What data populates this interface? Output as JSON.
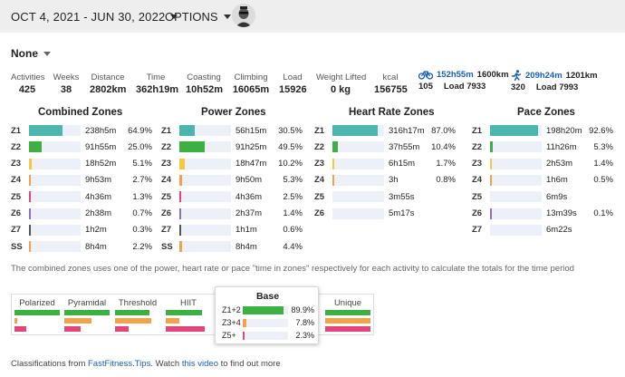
{
  "header": {
    "date_range": "OCT 4, 2021 - JUN 30, 2022",
    "options_label": "OPTIONS"
  },
  "filter": {
    "selected": "None"
  },
  "stats": [
    {
      "label": "Activities",
      "value": "425"
    },
    {
      "label": "Weeks",
      "value": "38"
    },
    {
      "label": "Distance",
      "value": "2802km"
    },
    {
      "label": "Time",
      "value": "362h19m"
    },
    {
      "label": "Coasting",
      "value": "10h52m"
    },
    {
      "label": "Climbing",
      "value": "16065m"
    },
    {
      "label": "Load",
      "value": "15926"
    },
    {
      "label": "Weight Lifted",
      "value": "0 kg"
    },
    {
      "label": "kcal",
      "value": "156755"
    }
  ],
  "sports": [
    {
      "icon": "bike-icon",
      "duration": "152h55m",
      "distance": "1600km",
      "count": "105",
      "load": "Load 7933"
    },
    {
      "icon": "run-icon",
      "duration": "209h24m",
      "distance": "1201km",
      "count": "320",
      "load": "Load 7993"
    }
  ],
  "zones": [
    {
      "title": "Combined Zones",
      "rows": [
        {
          "z": "Z1",
          "time": "238h5m",
          "pct": "64.9%",
          "frac": 0.649,
          "color": "#4db6ac"
        },
        {
          "z": "Z2",
          "time": "91h55m",
          "pct": "25.0%",
          "frac": 0.25,
          "color": "#3cb043"
        },
        {
          "z": "Z3",
          "time": "18h52m",
          "pct": "5.1%",
          "frac": 0.051,
          "color": "#f5c842"
        },
        {
          "z": "Z4",
          "time": "9h53m",
          "pct": "2.7%",
          "frac": 0.027,
          "color": "#f4a24a"
        },
        {
          "z": "Z5",
          "time": "4h36m",
          "pct": "1.3%",
          "frac": 0.013,
          "color": "#e0457b"
        },
        {
          "z": "Z6",
          "time": "2h38m",
          "pct": "0.7%",
          "frac": 0.007,
          "color": "#8e6cc9"
        },
        {
          "z": "Z7",
          "time": "1h2m",
          "pct": "0.3%",
          "frac": 0.003,
          "color": "#555555"
        },
        {
          "z": "SS",
          "time": "8h4m",
          "pct": "2.2%",
          "frac": 0.022,
          "color": "#f4a24a"
        }
      ]
    },
    {
      "title": "Power Zones",
      "rows": [
        {
          "z": "Z1",
          "time": "56h15m",
          "pct": "30.5%",
          "frac": 0.305,
          "color": "#4db6ac"
        },
        {
          "z": "Z2",
          "time": "91h25m",
          "pct": "49.5%",
          "frac": 0.495,
          "color": "#3cb043"
        },
        {
          "z": "Z3",
          "time": "18h47m",
          "pct": "10.2%",
          "frac": 0.102,
          "color": "#f5c842"
        },
        {
          "z": "Z4",
          "time": "9h50m",
          "pct": "5.3%",
          "frac": 0.053,
          "color": "#f4a24a"
        },
        {
          "z": "Z5",
          "time": "4h36m",
          "pct": "2.5%",
          "frac": 0.025,
          "color": "#e0457b"
        },
        {
          "z": "Z6",
          "time": "2h37m",
          "pct": "1.4%",
          "frac": 0.014,
          "color": "#8e6cc9"
        },
        {
          "z": "Z7",
          "time": "1h1m",
          "pct": "0.6%",
          "frac": 0.006,
          "color": "#555555"
        },
        {
          "z": "SS",
          "time": "8h4m",
          "pct": "4.4%",
          "frac": 0.044,
          "color": "#f4a24a"
        }
      ]
    },
    {
      "title": "Heart Rate Zones",
      "rows": [
        {
          "z": "Z1",
          "time": "316h17m",
          "pct": "87.0%",
          "frac": 0.87,
          "color": "#4db6ac"
        },
        {
          "z": "Z2",
          "time": "37h55m",
          "pct": "10.4%",
          "frac": 0.104,
          "color": "#3cb043"
        },
        {
          "z": "Z3",
          "time": "6h15m",
          "pct": "1.7%",
          "frac": 0.017,
          "color": "#f5c842"
        },
        {
          "z": "Z4",
          "time": "3h",
          "pct": "0.8%",
          "frac": 0.008,
          "color": "#f4a24a"
        },
        {
          "z": "Z5",
          "time": "3m55s",
          "pct": "",
          "frac": 0,
          "color": "#e0457b"
        },
        {
          "z": "Z6",
          "time": "5m17s",
          "pct": "",
          "frac": 0,
          "color": "#8e6cc9"
        }
      ]
    },
    {
      "title": "Pace Zones",
      "rows": [
        {
          "z": "Z1",
          "time": "198h20m",
          "pct": "92.6%",
          "frac": 0.926,
          "color": "#4db6ac"
        },
        {
          "z": "Z2",
          "time": "11h26m",
          "pct": "5.3%",
          "frac": 0.053,
          "color": "#3cb043"
        },
        {
          "z": "Z3",
          "time": "2h53m",
          "pct": "1.4%",
          "frac": 0.014,
          "color": "#f5c842"
        },
        {
          "z": "Z4",
          "time": "1h6m",
          "pct": "0.5%",
          "frac": 0.005,
          "color": "#f4a24a"
        },
        {
          "z": "Z5",
          "time": "6m9s",
          "pct": "",
          "frac": 0,
          "color": "#e0457b"
        },
        {
          "z": "Z6",
          "time": "13m39s",
          "pct": "0.1%",
          "frac": 0.001,
          "color": "#8e6cc9"
        },
        {
          "z": "Z7",
          "time": "6m22s",
          "pct": "",
          "frac": 0,
          "color": "#555555"
        }
      ]
    }
  ],
  "note": "The combined zones uses one of the power, heart rate or pace \"time in zones\" respectively for each activity to calculate the totals for the time period",
  "classifications": [
    {
      "name": "Polarized",
      "bars": [
        1.0,
        0.05,
        0.25
      ]
    },
    {
      "name": "Pyramidal",
      "bars": [
        1.0,
        0.6,
        0.35
      ]
    },
    {
      "name": "Threshold",
      "bars": [
        0.75,
        0.8,
        0.3
      ]
    },
    {
      "name": "HIIT",
      "bars": [
        0.8,
        0.3,
        0.85
      ]
    },
    {
      "name": "Unique",
      "bars": [
        1.0,
        1.0,
        1.0
      ]
    }
  ],
  "base_popup": {
    "title": "Base",
    "rows": [
      {
        "label": "Z1+2",
        "pct": "89.9%",
        "frac": 0.899,
        "color": "#3cb043"
      },
      {
        "label": "Z3+4",
        "pct": "7.8%",
        "frac": 0.078,
        "color": "#f4a24a"
      },
      {
        "label": "Z5+",
        "pct": "2.3%",
        "frac": 0.023,
        "color": "#e0457b"
      }
    ]
  },
  "class_colors": [
    "#3cb043",
    "#f4a24a",
    "#e0457b"
  ],
  "footer": {
    "prefix": "Classifications from ",
    "link1": "FastFitness.Tips",
    "mid": ". Watch ",
    "link2": "this video",
    "suffix": " to find out more"
  }
}
